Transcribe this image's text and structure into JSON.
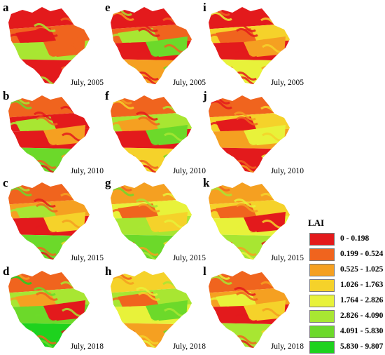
{
  "panels": [
    {
      "id": "a",
      "date": "July, 2005",
      "scheme": "lowA"
    },
    {
      "id": "e",
      "date": "July, 2005",
      "scheme": "lowE"
    },
    {
      "id": "i",
      "date": "July, 2005",
      "scheme": "lowI"
    },
    {
      "id": "b",
      "date": "July, 2010",
      "scheme": "lowB"
    },
    {
      "id": "f",
      "date": "July, 2010",
      "scheme": "midF"
    },
    {
      "id": "j",
      "date": "July, 2010",
      "scheme": "midJ"
    },
    {
      "id": "c",
      "date": "July, 2015",
      "scheme": "midC"
    },
    {
      "id": "g",
      "date": "July, 2015",
      "scheme": "midG"
    },
    {
      "id": "k",
      "date": "July, 2015",
      "scheme": "midK"
    },
    {
      "id": "d",
      "date": "July, 2018",
      "scheme": "highD"
    },
    {
      "id": "h",
      "date": "July, 2018",
      "scheme": "highH"
    },
    {
      "id": "l",
      "date": "July, 2018",
      "scheme": "highL"
    }
  ],
  "legend": {
    "title": "LAI",
    "classes": [
      {
        "range": "0 - 0.198",
        "color": "#e31a1c"
      },
      {
        "range": "0.199 - 0.524",
        "color": "#f0641e"
      },
      {
        "range": "0.525 - 1.025",
        "color": "#f5a021"
      },
      {
        "range": "1.026 - 1.763",
        "color": "#f5d22a"
      },
      {
        "range": "1.764 - 2.826",
        "color": "#e8f23a"
      },
      {
        "range": "2.826 - 4.090",
        "color": "#a8e632"
      },
      {
        "range": "4.091 - 5.830",
        "color": "#6cd92a"
      },
      {
        "range": "5.830 - 9.807",
        "color": "#1ed21e"
      }
    ]
  }
}
